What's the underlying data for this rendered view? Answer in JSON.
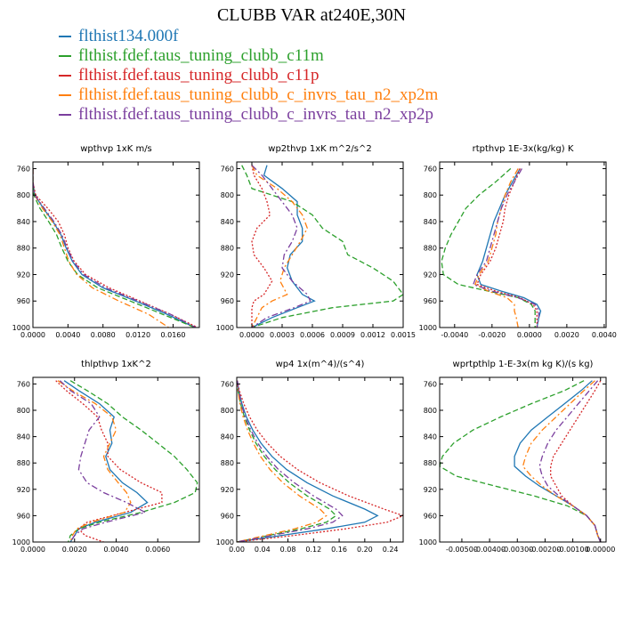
{
  "figure": {
    "title": "CLUBB VAR at240E,30N"
  },
  "legend": [
    {
      "label": "flthist134.000f",
      "color": "#1f77b4",
      "dash": "solid"
    },
    {
      "label": "flthist.fdef.taus_tuning_clubb_c11m",
      "color": "#2ca02c",
      "dash": "dashed"
    },
    {
      "label": "flthist.fdef.taus_tuning_clubb_c11p",
      "color": "#d62728",
      "dash": "dotted"
    },
    {
      "label": "flthist.fdef.taus_tuning_clubb_c_invrs_tau_n2_xp2m",
      "color": "#ff7f0e",
      "dash": "dashdot"
    },
    {
      "label": "flthist.fdef.taus_tuning_clubb_c_invrs_tau_n2_xp2p",
      "color": "#7b3f9e",
      "dash": "dashdot"
    }
  ],
  "chart_data": [
    {
      "type": "line",
      "title": "wpthvp  1xK m/s",
      "xlim": [
        0,
        0.019
      ],
      "ylim": [
        750,
        1000
      ],
      "yreversed": true,
      "xticks": [
        0,
        0.004,
        0.008,
        0.012,
        0.016
      ],
      "xtick_labels": [
        "0.0000",
        "0.0040",
        "0.0080",
        "0.0120",
        "0.0160"
      ],
      "yticks": [
        760,
        800,
        840,
        880,
        920,
        960,
        1000
      ],
      "ytick_labels": [
        "760",
        "800",
        "840",
        "880",
        "920",
        "960",
        "1000"
      ],
      "y": [
        760,
        780,
        800,
        820,
        840,
        860,
        880,
        900,
        920,
        940,
        960,
        980,
        1000
      ],
      "series": [
        {
          "name": "flthist134.000f",
          "values": [
            0.0,
            0.0,
            0.0002,
            0.0012,
            0.0023,
            0.0032,
            0.0038,
            0.0045,
            0.0056,
            0.008,
            0.0117,
            0.0153,
            0.0185
          ]
        },
        {
          "name": "flthist.fdef.taus_tuning_clubb_c11m",
          "values": [
            0.0,
            0.0,
            0.0001,
            0.0008,
            0.0018,
            0.0027,
            0.0033,
            0.004,
            0.0051,
            0.0074,
            0.0111,
            0.0148,
            0.0185
          ]
        },
        {
          "name": "flthist.fdef.taus_tuning_clubb_c11p",
          "values": [
            0.0,
            0.0,
            0.0003,
            0.0017,
            0.0029,
            0.0036,
            0.004,
            0.0047,
            0.006,
            0.0087,
            0.0122,
            0.0157,
            0.0188
          ]
        },
        {
          "name": "flthist.fdef.taus_tuning_clubb_c_invrs_tau_n2_xp2m",
          "values": [
            0.0,
            0.0,
            0.0002,
            0.0011,
            0.0022,
            0.0031,
            0.0036,
            0.0041,
            0.005,
            0.0068,
            0.0098,
            0.0132,
            0.0155
          ]
        },
        {
          "name": "flthist.fdef.taus_tuning_clubb_c_invrs_tau_n2_xp2p",
          "values": [
            0.0,
            0.0,
            0.0002,
            0.0013,
            0.0024,
            0.0033,
            0.0039,
            0.0046,
            0.0058,
            0.0083,
            0.012,
            0.0157,
            0.0186
          ]
        }
      ]
    },
    {
      "type": "line",
      "title": "wp2thvp  1xK m^2/s^2",
      "xlim": [
        -0.00015,
        0.0015
      ],
      "ylim": [
        750,
        1000
      ],
      "yreversed": true,
      "xticks": [
        0,
        0.0003,
        0.0006,
        0.0009,
        0.0012,
        0.0015
      ],
      "xtick_labels": [
        "0.0000",
        "0.0003",
        "0.0006",
        "0.0009",
        "0.0012",
        "0.0015"
      ],
      "yticks": [
        760,
        800,
        840,
        880,
        920,
        960,
        1000
      ],
      "ytick_labels": [
        "760",
        "800",
        "840",
        "880",
        "920",
        "960",
        "1000"
      ],
      "y": [
        755,
        770,
        790,
        810,
        830,
        850,
        870,
        890,
        910,
        930,
        950,
        960,
        970,
        985,
        1000
      ],
      "series": [
        {
          "name": "flthist134.000f",
          "values": [
            0.00015,
            0.00012,
            0.0003,
            0.00045,
            0.00045,
            0.0005,
            0.0005,
            0.00038,
            0.00035,
            0.0004,
            0.0005,
            0.00062,
            0.00045,
            0.0002,
            0.0
          ]
        },
        {
          "name": "flthist.fdef.taus_tuning_clubb_c11m",
          "values": [
            -0.0001,
            -5e-05,
            0.0,
            0.0004,
            0.0006,
            0.0007,
            0.0009,
            0.00095,
            0.0012,
            0.0014,
            0.0015,
            0.0014,
            0.0008,
            0.0003,
            0.0
          ]
        },
        {
          "name": "flthist.fdef.taus_tuning_clubb_c11p",
          "values": [
            0.0,
            2e-05,
            0.0001,
            0.00015,
            0.00018,
            5e-05,
            0.0,
            2e-05,
            0.00012,
            0.0002,
            0.00012,
            2e-05,
            0.0,
            0.0,
            0.0
          ]
        },
        {
          "name": "flthist.fdef.taus_tuning_clubb_c_invrs_tau_n2_xp2m",
          "values": [
            0.0,
            5e-05,
            0.00025,
            0.0004,
            0.0005,
            0.00055,
            0.00048,
            0.0004,
            0.00032,
            0.00028,
            0.00035,
            0.0002,
            0.0001,
            5e-05,
            0.0
          ]
        },
        {
          "name": "flthist.fdef.taus_tuning_clubb_c_invrs_tau_n2_xp2p",
          "values": [
            0.0,
            0.0001,
            0.0002,
            0.0003,
            0.0004,
            0.00045,
            0.0004,
            0.00032,
            0.0003,
            0.0004,
            0.00055,
            0.00058,
            0.00042,
            0.00015,
            0.0
          ]
        }
      ]
    },
    {
      "type": "line",
      "title": "rtpthvp  1E-3x(kg/kg) K",
      "xlim": [
        -0.0048,
        0.0041
      ],
      "ylim": [
        750,
        1000
      ],
      "yreversed": true,
      "xticks": [
        -0.004,
        -0.002,
        0.0,
        0.002,
        0.004
      ],
      "xtick_labels": [
        "-0.0040",
        "-0.0020",
        "0.0000",
        "0.0020",
        "0.0040"
      ],
      "yticks": [
        760,
        800,
        840,
        880,
        920,
        960,
        1000
      ],
      "ytick_labels": [
        "760",
        "800",
        "840",
        "880",
        "920",
        "960",
        "1000"
      ],
      "y": [
        760,
        780,
        800,
        820,
        840,
        860,
        880,
        900,
        920,
        935,
        945,
        955,
        965,
        975,
        985,
        1000
      ],
      "series": [
        {
          "name": "flthist134.000f",
          "values": [
            -0.0005,
            -0.0009,
            -0.0013,
            -0.0016,
            -0.0019,
            -0.0021,
            -0.0023,
            -0.0025,
            -0.0028,
            -0.0026,
            -0.0015,
            -0.0003,
            0.0004,
            0.0006,
            0.0005,
            0.0004
          ]
        },
        {
          "name": "flthist.fdef.taus_tuning_clubb_c11m",
          "values": [
            -0.001,
            -0.0018,
            -0.0027,
            -0.0034,
            -0.0038,
            -0.0042,
            -0.0045,
            -0.0047,
            -0.0046,
            -0.0038,
            -0.0022,
            -0.0006,
            0.0001,
            0.0003,
            0.0003,
            0.0003
          ]
        },
        {
          "name": "flthist.fdef.taus_tuning_clubb_c11p",
          "values": [
            -0.0005,
            -0.0008,
            -0.0011,
            -0.0013,
            -0.0014,
            -0.0016,
            -0.0018,
            -0.0021,
            -0.0026,
            -0.0028,
            -0.0018,
            -0.0005,
            0.0002,
            0.0004,
            0.0004,
            0.0004
          ]
        },
        {
          "name": "flthist.fdef.taus_tuning_clubb_c_invrs_tau_n2_xp2m",
          "values": [
            -0.0006,
            -0.001,
            -0.0013,
            -0.0015,
            -0.0017,
            -0.0018,
            -0.002,
            -0.0022,
            -0.0027,
            -0.0029,
            -0.0022,
            -0.0012,
            -0.0008,
            -0.0008,
            -0.0007,
            -0.0006
          ]
        },
        {
          "name": "flthist.fdef.taus_tuning_clubb_c_invrs_tau_n2_xp2p",
          "values": [
            -0.0004,
            -0.0008,
            -0.0012,
            -0.0015,
            -0.0017,
            -0.0019,
            -0.0021,
            -0.0023,
            -0.0028,
            -0.003,
            -0.002,
            -0.0006,
            0.0003,
            0.0005,
            0.0005,
            0.0004
          ]
        }
      ]
    },
    {
      "type": "line",
      "title": "thlpthvp  1xK^2",
      "xlim": [
        0,
        0.008
      ],
      "ylim": [
        750,
        1000
      ],
      "yreversed": true,
      "xticks": [
        0,
        0.002,
        0.004,
        0.006
      ],
      "xtick_labels": [
        "0.0000",
        "0.0020",
        "0.0040",
        "0.0060"
      ],
      "yticks": [
        760,
        800,
        840,
        880,
        920,
        960,
        1000
      ],
      "ytick_labels": [
        "760",
        "800",
        "840",
        "880",
        "920",
        "960",
        "1000"
      ],
      "y": [
        755,
        770,
        790,
        810,
        830,
        850,
        870,
        890,
        910,
        925,
        940,
        955,
        970,
        980,
        990,
        1000
      ],
      "series": [
        {
          "name": "flthist134.000f",
          "values": [
            0.0015,
            0.0022,
            0.0032,
            0.0039,
            0.0037,
            0.0038,
            0.0035,
            0.0037,
            0.0043,
            0.005,
            0.0055,
            0.0047,
            0.003,
            0.0022,
            0.002,
            0.0018
          ]
        },
        {
          "name": "flthist.fdef.taus_tuning_clubb_c11m",
          "values": [
            0.0018,
            0.0026,
            0.0036,
            0.0043,
            0.0052,
            0.006,
            0.0068,
            0.0074,
            0.0079,
            0.0078,
            0.0068,
            0.0052,
            0.0032,
            0.0022,
            0.0018,
            0.0017
          ]
        },
        {
          "name": "flthist.fdef.taus_tuning_clubb_c11p",
          "values": [
            0.0011,
            0.0016,
            0.0024,
            0.0031,
            0.0033,
            0.0036,
            0.0036,
            0.0042,
            0.0052,
            0.0062,
            0.0062,
            0.0044,
            0.0026,
            0.0022,
            0.0025,
            0.0034
          ]
        },
        {
          "name": "flthist.fdef.taus_tuning_clubb_c_invrs_tau_n2_xp2m",
          "values": [
            0.0012,
            0.0019,
            0.003,
            0.0038,
            0.004,
            0.0037,
            0.0034,
            0.0036,
            0.0041,
            0.0045,
            0.0047,
            0.0044,
            0.0028,
            0.0021,
            0.0019,
            0.0018
          ]
        },
        {
          "name": "flthist.fdef.taus_tuning_clubb_c_invrs_tau_n2_xp2p",
          "values": [
            0.0013,
            0.0018,
            0.0028,
            0.0032,
            0.0027,
            0.0025,
            0.0023,
            0.0022,
            0.0026,
            0.0034,
            0.0045,
            0.0054,
            0.0035,
            0.0024,
            0.002,
            0.0018
          ]
        }
      ]
    },
    {
      "type": "line",
      "title": "wp4  1x(m^4)/(s^4)",
      "xlim": [
        0,
        0.26
      ],
      "ylim": [
        750,
        1000
      ],
      "yreversed": true,
      "xticks": [
        0,
        0.04,
        0.08,
        0.12,
        0.16,
        0.2,
        0.24
      ],
      "xtick_labels": [
        "0.00",
        "0.04",
        "0.08",
        "0.12",
        "0.16",
        "0.20",
        "0.24"
      ],
      "yticks": [
        760,
        800,
        840,
        880,
        920,
        960,
        1000
      ],
      "ytick_labels": [
        "760",
        "800",
        "840",
        "880",
        "920",
        "960",
        "1000"
      ],
      "y": [
        755,
        770,
        790,
        810,
        830,
        850,
        870,
        890,
        910,
        930,
        950,
        960,
        970,
        980,
        990,
        1000
      ],
      "series": [
        {
          "name": "flthist134.000f",
          "values": [
            0.001,
            0.003,
            0.008,
            0.015,
            0.025,
            0.038,
            0.055,
            0.078,
            0.11,
            0.15,
            0.2,
            0.22,
            0.2,
            0.14,
            0.07,
            0.0
          ]
        },
        {
          "name": "flthist.fdef.taus_tuning_clubb_c11m",
          "values": [
            0.001,
            0.002,
            0.006,
            0.012,
            0.02,
            0.03,
            0.043,
            0.06,
            0.082,
            0.11,
            0.145,
            0.155,
            0.14,
            0.1,
            0.05,
            0.0
          ]
        },
        {
          "name": "flthist.fdef.taus_tuning_clubb_c11p",
          "values": [
            0.001,
            0.004,
            0.011,
            0.02,
            0.032,
            0.048,
            0.068,
            0.095,
            0.13,
            0.175,
            0.23,
            0.26,
            0.235,
            0.17,
            0.09,
            0.0
          ]
        },
        {
          "name": "flthist.fdef.taus_tuning_clubb_c_invrs_tau_n2_xp2m",
          "values": [
            0.001,
            0.002,
            0.005,
            0.01,
            0.017,
            0.026,
            0.037,
            0.052,
            0.072,
            0.098,
            0.13,
            0.14,
            0.125,
            0.09,
            0.045,
            0.0
          ]
        },
        {
          "name": "flthist.fdef.taus_tuning_clubb_c_invrs_tau_n2_xp2p",
          "values": [
            0.001,
            0.003,
            0.007,
            0.013,
            0.022,
            0.033,
            0.047,
            0.065,
            0.09,
            0.12,
            0.155,
            0.165,
            0.15,
            0.11,
            0.055,
            0.0
          ]
        }
      ]
    },
    {
      "type": "line",
      "title": "wprtpthlp  1-E-3x(m kg K)/(s kg)",
      "xlim": [
        -0.0058,
        0.0002
      ],
      "ylim": [
        750,
        1000
      ],
      "yreversed": true,
      "xticks": [
        -0.005,
        -0.004,
        -0.003,
        -0.002,
        -0.001,
        0.0
      ],
      "xtick_labels": [
        "-0.00500",
        "-0.00400",
        "-0.00300",
        "-0.00200",
        "-0.00100",
        "0.00000"
      ],
      "yticks": [
        760,
        800,
        840,
        880,
        920,
        960,
        1000
      ],
      "ytick_labels": [
        "760",
        "800",
        "840",
        "880",
        "920",
        "960",
        "1000"
      ],
      "y": [
        755,
        770,
        790,
        810,
        830,
        850,
        870,
        885,
        900,
        915,
        930,
        945,
        960,
        975,
        990,
        1000
      ],
      "series": [
        {
          "name": "flthist134.000f",
          "values": [
            -0.0003,
            -0.0007,
            -0.0013,
            -0.0019,
            -0.0025,
            -0.0029,
            -0.0031,
            -0.0031,
            -0.0027,
            -0.0022,
            -0.0016,
            -0.001,
            -0.0005,
            -0.0002,
            -0.0001,
            0.0
          ]
        },
        {
          "name": "flthist.fdef.taus_tuning_clubb_c11m",
          "values": [
            -0.0006,
            -0.0013,
            -0.0025,
            -0.0036,
            -0.0046,
            -0.0053,
            -0.0057,
            -0.0058,
            -0.0052,
            -0.0038,
            -0.0024,
            -0.0012,
            -0.0005,
            -0.0002,
            -0.0001,
            0.0
          ]
        },
        {
          "name": "flthist.fdef.taus_tuning_clubb_c11p",
          "values": [
            0.0,
            -0.0002,
            -0.0005,
            -0.0008,
            -0.0011,
            -0.0014,
            -0.0017,
            -0.0018,
            -0.0018,
            -0.0016,
            -0.0014,
            -0.001,
            -0.0005,
            -0.0002,
            -0.0001,
            0.0
          ]
        },
        {
          "name": "flthist.fdef.taus_tuning_clubb_c_invrs_tau_n2_xp2m",
          "values": [
            -0.0002,
            -0.0006,
            -0.0011,
            -0.0016,
            -0.0021,
            -0.0025,
            -0.0027,
            -0.0028,
            -0.0025,
            -0.0021,
            -0.0016,
            -0.001,
            -0.0005,
            -0.0002,
            -0.0001,
            0.0
          ]
        },
        {
          "name": "flthist.fdef.taus_tuning_clubb_c_invrs_tau_n2_xp2p",
          "values": [
            -0.0001,
            -0.0004,
            -0.0008,
            -0.0012,
            -0.0016,
            -0.0019,
            -0.0021,
            -0.0022,
            -0.0021,
            -0.0019,
            -0.0015,
            -0.001,
            -0.0005,
            -0.0002,
            -0.0001,
            0.0
          ]
        }
      ]
    }
  ]
}
